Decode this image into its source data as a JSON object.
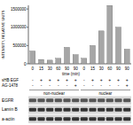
{
  "chart_data": {
    "type": "bar",
    "y_label": "INTENSITY, RELATIVE UNITS",
    "x_label": "time (min)",
    "categories": [
      "0",
      "15",
      "30",
      "60",
      "90",
      "90",
      "0",
      "15",
      "30",
      "60",
      "90",
      "90"
    ],
    "values": [
      350000,
      120000,
      100000,
      150000,
      450000,
      250000,
      150000,
      500000,
      900000,
      1600000,
      1000000,
      400000
    ],
    "color": "#a6a6a6",
    "ylim": [
      0,
      1600000
    ],
    "yticks": [
      0,
      500000,
      1000000,
      1500000
    ],
    "treatments": [
      {
        "name": "sHB EGF",
        "signs": [
          "-",
          "+",
          "+",
          "+",
          "+",
          "+",
          "-",
          "+",
          "+",
          "+",
          "+",
          "+"
        ]
      },
      {
        "name": "AG-1478",
        "signs": [
          "-",
          "-",
          "-",
          "-",
          "-",
          "+",
          "-",
          "-",
          "-",
          "-",
          "-",
          "+"
        ]
      }
    ],
    "groups": [
      "non-nuclear",
      "nuclear"
    ],
    "blots": [
      "EGFR",
      "Lamin B",
      "a-actin"
    ]
  }
}
